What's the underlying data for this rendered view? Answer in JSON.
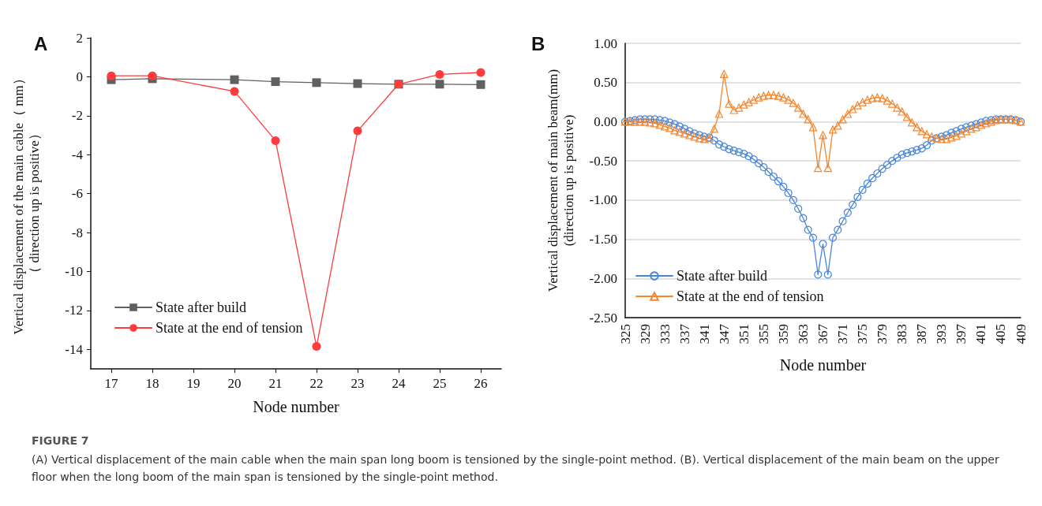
{
  "chart_data": [
    {
      "type": "line",
      "title": "A",
      "xlabel": "Node number",
      "ylabel": "Vertical displacement of the main cable（ mm）（ direction up is positive）",
      "x": [
        17,
        18,
        20,
        21,
        22,
        23,
        24,
        25,
        26
      ],
      "xlim": [
        16.5,
        26.5
      ],
      "xticks": [
        17,
        18,
        19,
        20,
        21,
        22,
        23,
        24,
        25,
        26
      ],
      "ylim": [
        -15,
        2
      ],
      "yticks": [
        -14,
        -12,
        -10,
        -8,
        -6,
        -4,
        -2,
        0,
        2
      ],
      "grid": false,
      "legend": "bottom left",
      "series": [
        {
          "name": "State after build",
          "color": "#606060",
          "marker": "square",
          "values": [
            -0.15,
            -0.1,
            -0.15,
            -0.25,
            -0.3,
            -0.35,
            -0.38,
            -0.38,
            -0.4
          ]
        },
        {
          "name": "State at the end of tension",
          "color": "#ff3b3b",
          "marker": "circle",
          "values": [
            0.05,
            0.05,
            -0.75,
            -3.28,
            -13.85,
            -2.78,
            -0.38,
            0.12,
            0.22
          ]
        }
      ],
      "annotations": [
        "FIGURE 7",
        "(A) Vertical displacement of the main cable when the main span long boom is tensioned by the single-point method. (B). Vertical displacement of the main beam on the upper floor when the long boom of the main span is tensioned by the single-point method."
      ]
    },
    {
      "type": "line",
      "title": "B",
      "xlabel": "Node number",
      "ylabel": "Vertical displacement of main beam(mm)\n(direction up is positive)",
      "categories": [
        "325",
        null,
        null,
        null,
        "329",
        null,
        null,
        null,
        "333",
        null,
        null,
        null,
        "337",
        null,
        null,
        null,
        "341",
        null,
        null,
        null,
        "347",
        null,
        null,
        null,
        "351",
        null,
        null,
        null,
        "355",
        null,
        null,
        null,
        "359",
        null,
        null,
        null,
        "363",
        null,
        null,
        null,
        "367",
        null,
        null,
        null,
        "371",
        null,
        null,
        null,
        "375",
        null,
        null,
        null,
        "379",
        null,
        null,
        null,
        "383",
        null,
        null,
        null,
        "387",
        null,
        null,
        null,
        "393",
        null,
        null,
        null,
        "397",
        null,
        null,
        null,
        "401",
        null,
        null,
        null,
        "405",
        null,
        null,
        null,
        "409"
      ],
      "ylim": [
        -2.5,
        1
      ],
      "yticks": [
        {
          "value": -2.5,
          "label": "-2.50"
        },
        {
          "value": -2,
          "label": "-2.00"
        },
        {
          "value": -1.5,
          "label": "-1.50"
        },
        {
          "value": -1,
          "label": "-1.00"
        },
        {
          "value": -0.5,
          "label": "-0.50"
        },
        {
          "value": 0,
          "label": "0.00"
        },
        {
          "value": 0.5,
          "label": "0.50"
        },
        {
          "value": 1,
          "label": "1.00"
        }
      ],
      "grid": "y",
      "legend": "bottom left",
      "series": [
        {
          "name": "State after build",
          "color": "#4a86d8",
          "marker": "circle",
          "values": [
            0.0,
            0.01,
            0.02,
            0.03,
            0.03,
            0.03,
            0.03,
            0.02,
            0.01,
            -0.01,
            -0.03,
            -0.06,
            -0.09,
            -0.12,
            -0.15,
            -0.17,
            -0.19,
            -0.2,
            -0.24,
            -0.29,
            -0.32,
            -0.35,
            -0.37,
            -0.39,
            -0.41,
            -0.44,
            -0.48,
            -0.53,
            -0.58,
            -0.64,
            -0.7,
            -0.76,
            -0.83,
            -0.91,
            -1.0,
            -1.11,
            -1.23,
            -1.38,
            -1.48,
            -1.95,
            -1.56,
            -1.95,
            -1.48,
            -1.38,
            -1.27,
            -1.16,
            -1.06,
            -0.96,
            -0.87,
            -0.79,
            -0.72,
            -0.66,
            -0.6,
            -0.55,
            -0.5,
            -0.46,
            -0.42,
            -0.4,
            -0.38,
            -0.36,
            -0.34,
            -0.3,
            -0.24,
            -0.21,
            -0.19,
            -0.17,
            -0.14,
            -0.12,
            -0.09,
            -0.07,
            -0.05,
            -0.03,
            -0.01,
            0.01,
            0.02,
            0.03,
            0.03,
            0.03,
            0.03,
            0.02,
            0.0
          ]
        },
        {
          "name": "State at the end of tension",
          "color": "#f5862e",
          "marker": "triangle",
          "values": [
            0.0,
            0.0,
            0.0,
            0.0,
            0.0,
            -0.01,
            -0.02,
            -0.04,
            -0.06,
            -0.08,
            -0.11,
            -0.13,
            -0.15,
            -0.17,
            -0.19,
            -0.21,
            -0.22,
            -0.21,
            -0.09,
            0.1,
            0.61,
            0.23,
            0.15,
            0.18,
            0.22,
            0.25,
            0.28,
            0.31,
            0.33,
            0.34,
            0.34,
            0.33,
            0.31,
            0.28,
            0.24,
            0.18,
            0.1,
            0.03,
            -0.07,
            -0.59,
            -0.17,
            -0.59,
            -0.1,
            -0.05,
            0.03,
            0.1,
            0.16,
            0.21,
            0.25,
            0.28,
            0.3,
            0.31,
            0.3,
            0.27,
            0.23,
            0.18,
            0.13,
            0.06,
            -0.01,
            -0.07,
            -0.12,
            -0.16,
            -0.19,
            -0.21,
            -0.22,
            -0.22,
            -0.2,
            -0.18,
            -0.15,
            -0.12,
            -0.09,
            -0.07,
            -0.04,
            -0.02,
            0.0,
            0.02,
            0.03,
            0.03,
            0.03,
            0.02,
            0.0
          ]
        }
      ]
    }
  ]
}
